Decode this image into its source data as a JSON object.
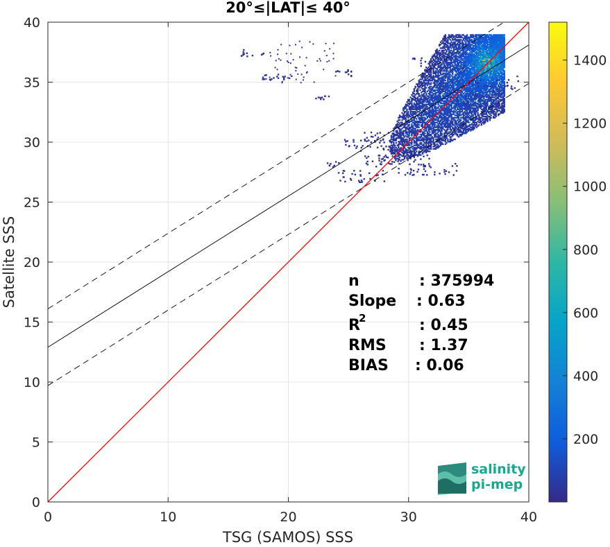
{
  "chart_data": {
    "type": "heatmap",
    "title": "20°≤|LAT|≤ 40°",
    "xlabel": "TSG (SAMOS) SSS",
    "ylabel": "Satellite SSS",
    "xlim": [
      0,
      40
    ],
    "ylim": [
      0,
      40
    ],
    "xticks": [
      "0",
      "10",
      "20",
      "30",
      "40"
    ],
    "yticks": [
      "0",
      "5",
      "10",
      "15",
      "20",
      "25",
      "30",
      "35",
      "40"
    ],
    "grid": true,
    "colorbar": {
      "range": [
        0,
        1520
      ],
      "ticks": [
        "200",
        "400",
        "600",
        "800",
        "1000",
        "1200",
        "1400"
      ],
      "tick_values": [
        200,
        400,
        600,
        800,
        1000,
        1200,
        1400
      ],
      "colormap": "parula",
      "colors": [
        "#352a87",
        "#0f5cdd",
        "#1481d6",
        "#06a4ca",
        "#2eb7a4",
        "#87bf77",
        "#d1bb59",
        "#fec832",
        "#f9fb0e"
      ]
    },
    "lines": {
      "identity": {
        "slope": 1,
        "intercept": 0,
        "color": "#ff0000"
      },
      "fit": {
        "slope": 0.63,
        "intercept": 12.9,
        "color": "#000000"
      },
      "fit_upper": {
        "slope": 0.63,
        "intercept": 16.1,
        "color": "#000000",
        "style": "dashed"
      },
      "fit_lower": {
        "slope": 0.63,
        "intercept": 9.7,
        "color": "#000000",
        "style": "dashed"
      }
    },
    "density_core": {
      "x_range": [
        27,
        38
      ],
      "y_range": [
        27,
        39
      ],
      "peak": [
        36.5,
        36.5
      ],
      "peak_count": 1500
    },
    "stats": [
      {
        "label": "n",
        "value": ": 375994"
      },
      {
        "label": "Slope",
        "value": ": 0.63"
      },
      {
        "label": "R",
        "sup": "2",
        "value": ": 0.45"
      },
      {
        "label": "RMS",
        "value": ": 1.37"
      },
      {
        "label": "BIAS",
        "value": ": 0.06"
      }
    ]
  },
  "logo": {
    "line1": "salinity",
    "line2": "pi-mep"
  }
}
